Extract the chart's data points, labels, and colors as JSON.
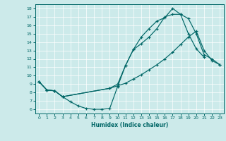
{
  "title": "",
  "xlabel": "Humidex (Indice chaleur)",
  "bg_color": "#cceaea",
  "line_color": "#006666",
  "grid_color": "#b0d8d8",
  "xlim": [
    -0.5,
    23.5
  ],
  "ylim": [
    5.5,
    18.5
  ],
  "xticks": [
    0,
    1,
    2,
    3,
    4,
    5,
    6,
    7,
    8,
    9,
    10,
    11,
    12,
    13,
    14,
    15,
    16,
    17,
    18,
    19,
    20,
    21,
    22,
    23
  ],
  "yticks": [
    6,
    7,
    8,
    9,
    10,
    11,
    12,
    13,
    14,
    15,
    16,
    17,
    18
  ],
  "curve1_x": [
    0,
    1,
    2,
    3,
    4,
    5,
    6,
    7,
    8,
    9,
    10,
    11,
    12,
    13,
    14,
    15,
    16,
    17,
    18,
    19,
    20,
    21
  ],
  "curve1_y": [
    9.3,
    8.3,
    8.2,
    7.5,
    6.9,
    6.4,
    6.1,
    6.0,
    6.0,
    6.1,
    8.7,
    11.2,
    13.1,
    14.6,
    15.6,
    16.5,
    16.9,
    18.0,
    17.3,
    15.0,
    13.2,
    12.2
  ],
  "curve2_x": [
    0,
    1,
    2,
    3,
    9,
    10,
    11,
    12,
    13,
    14,
    15,
    16,
    17,
    18,
    19,
    20,
    21,
    22,
    23
  ],
  "curve2_y": [
    9.3,
    8.3,
    8.2,
    7.5,
    8.5,
    9.0,
    11.2,
    13.1,
    13.8,
    14.6,
    15.6,
    17.0,
    17.3,
    17.3,
    16.8,
    15.0,
    12.5,
    12.0,
    11.3
  ],
  "curve3_x": [
    0,
    1,
    2,
    3,
    9,
    10,
    11,
    12,
    13,
    14,
    15,
    16,
    17,
    18,
    19,
    20,
    21,
    22,
    23
  ],
  "curve3_y": [
    9.3,
    8.3,
    8.2,
    7.5,
    8.5,
    8.8,
    9.1,
    9.6,
    10.1,
    10.7,
    11.3,
    12.0,
    12.8,
    13.7,
    14.6,
    15.3,
    13.0,
    11.8,
    11.3
  ]
}
